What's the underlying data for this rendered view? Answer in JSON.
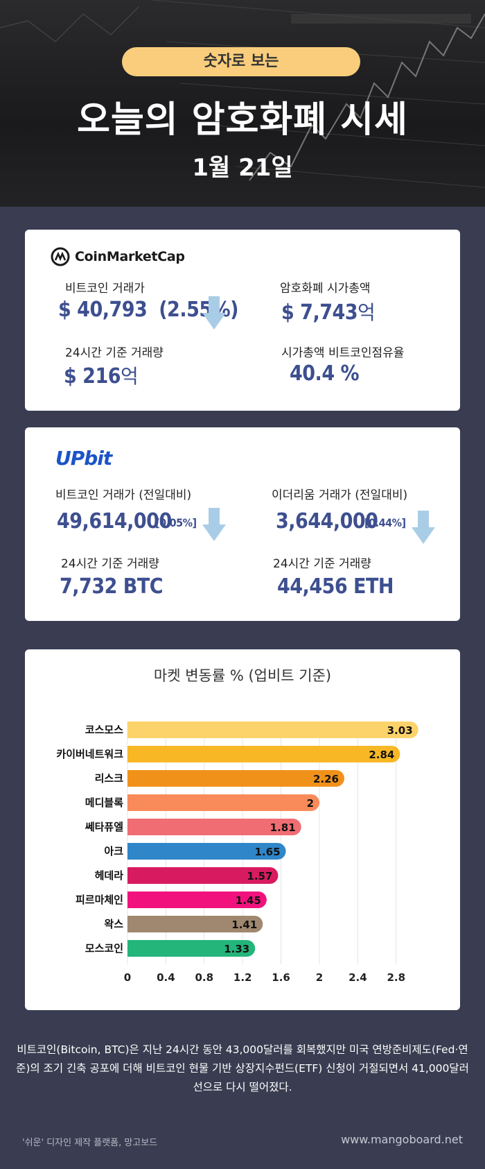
{
  "header": {
    "badge": "숫자로 보는",
    "title": "오늘의 암호화폐 시세",
    "date": "1월 21일"
  },
  "cmc": {
    "brand": "CoinMarketCap",
    "btc_price_label": "비트코인 거래가",
    "btc_price_value": "$ 40,793",
    "btc_price_change": "(2.55%)",
    "btc_price_direction": "down",
    "market_cap_label": "암호화폐 시가총액",
    "market_cap_prefix": "$ 7,743",
    "market_cap_unit": "억",
    "volume_label": "24시간 기준 거래량",
    "volume_prefix": "$ 216",
    "volume_unit": "억",
    "dominance_label": "시가총액 비트코인점유율",
    "dominance_value": "40.4 %"
  },
  "upbit": {
    "brand": "UPbit",
    "btc_label": "비트코인 거래가 (전일대비)",
    "btc_value": "49,614,000",
    "btc_change": "[0.05%]",
    "btc_direction": "down",
    "eth_label": "이더리움 거래가 (전일대비)",
    "eth_value": "3,644,000",
    "eth_change": "[0.44%]",
    "eth_direction": "down",
    "btc_volume_label": "24시간 기준 거래량",
    "btc_volume_value": "7,732 BTC",
    "eth_volume_label": "24시간 기준 거래량",
    "eth_volume_value": "44,456 ETH"
  },
  "chart_data": {
    "type": "bar",
    "orientation": "horizontal",
    "title": "마켓 변동률 % (업비트 기준)",
    "categories": [
      "코스모스",
      "카이버네트워크",
      "리스크",
      "메디블록",
      "쎄타퓨엘",
      "아크",
      "헤데라",
      "피르마체인",
      "왁스",
      "모스코인"
    ],
    "values": [
      3.03,
      2.84,
      2.26,
      2,
      1.81,
      1.65,
      1.57,
      1.45,
      1.41,
      1.33
    ],
    "value_labels": [
      "3.03",
      "2.84",
      "2.26",
      "2",
      "1.81",
      "1.65",
      "1.57",
      "1.45",
      "1.41",
      "1.33"
    ],
    "colors": [
      "#fcd36a",
      "#f8b825",
      "#f0921a",
      "#f98a5a",
      "#f06d73",
      "#2f86c9",
      "#d81b60",
      "#f2127d",
      "#a0876f",
      "#23b57a"
    ],
    "xticks": [
      "0",
      "0.4",
      "0.8",
      "1.2",
      "1.6",
      "2",
      "2.4",
      "2.8"
    ],
    "xlim": [
      0,
      3.1
    ],
    "grid": true
  },
  "footer": {
    "body": "비트코인(Bitcoin, BTC)은 지난 24시간 동안 43,000달러를 회복했지만 미국 연방준비제도(Fed·연준)의 조기 긴축 공포에 더해 비트코인 현물 기반 상장지수펀드(ETF) 신청이 거절되면서 41,000달러선으로 다시 떨어졌다.",
    "credit_left": "'쉬운' 디자인 제작 플랫폼, 망고보드",
    "credit_right": "www.mangoboard.net"
  }
}
